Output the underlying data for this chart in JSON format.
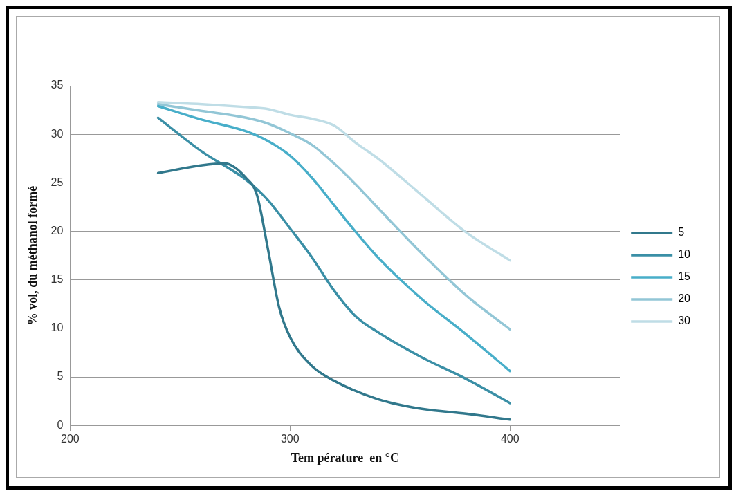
{
  "chart_data": {
    "type": "line",
    "xlabel": "Tem pérature  en °C",
    "ylabel": "% vol, du méthanol formé",
    "x": [
      240,
      260,
      270,
      280,
      285,
      290,
      295,
      300,
      310,
      320,
      330,
      340,
      360,
      380,
      400
    ],
    "series": [
      {
        "name": "5",
        "color": "#31788c",
        "values": [
          26.0,
          26.8,
          27.0,
          25.5,
          23.7,
          18.1,
          12.2,
          9.1,
          6.1,
          4.6,
          null,
          2.7,
          1.7,
          1.2,
          0.6
        ]
      },
      {
        "name": "10",
        "color": "#3a8fa6",
        "values": [
          31.7,
          28.2,
          null,
          25.3,
          null,
          23.2,
          null,
          20.3,
          17.3,
          13.9,
          11.2,
          9.6,
          7.0,
          4.8,
          2.3
        ]
      },
      {
        "name": "15",
        "color": "#48aec9",
        "values": [
          32.9,
          31.5,
          null,
          30.3,
          null,
          29.3,
          null,
          27.8,
          25.5,
          22.7,
          19.9,
          17.3,
          13.0,
          9.4,
          5.6
        ]
      },
      {
        "name": "20",
        "color": "#92c6d6",
        "values": [
          33.1,
          32.4,
          null,
          31.7,
          null,
          31.1,
          null,
          30.1,
          28.9,
          27.0,
          24.8,
          22.4,
          17.7,
          13.4,
          9.9
        ]
      },
      {
        "name": "30",
        "color": "#bfdde6",
        "values": [
          33.3,
          33.1,
          null,
          32.8,
          null,
          32.6,
          null,
          32.0,
          31.6,
          30.9,
          29.1,
          27.5,
          23.7,
          19.9,
          17.0
        ]
      }
    ],
    "xlim": [
      200,
      450
    ],
    "xticks": [
      200,
      300,
      400
    ],
    "ylim": [
      0,
      35
    ],
    "yticks": [
      0,
      5,
      10,
      15,
      20,
      25,
      30,
      35
    ],
    "grid": "y",
    "legend": "right",
    "marker": "none",
    "line_style": "solid"
  }
}
